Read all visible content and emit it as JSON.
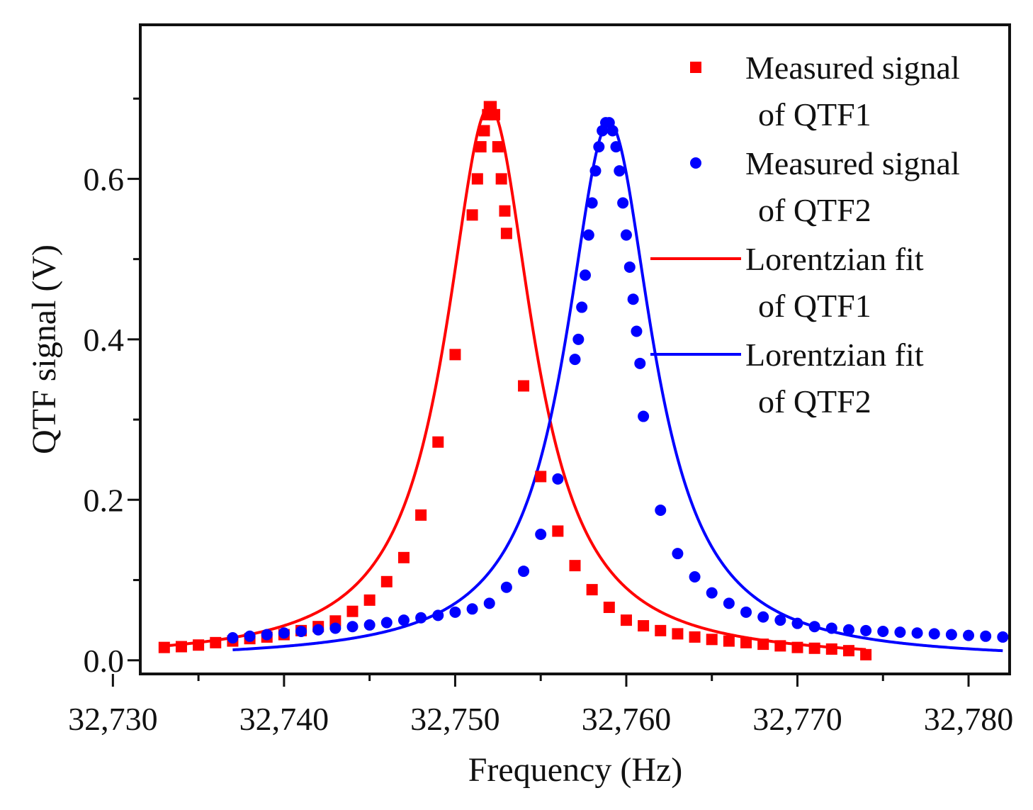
{
  "chart_data": {
    "type": "scatter",
    "xlabel": "Frequency (Hz)",
    "ylabel": "QTF signal (V)",
    "xlim": [
      32731.6,
      32782.4
    ],
    "ylim": [
      -0.017,
      0.792
    ],
    "xticks": [
      32730,
      32740,
      32750,
      32760,
      32770,
      32780
    ],
    "xtick_labels": [
      "32,730",
      "32,740",
      "32,750",
      "32,760",
      "32,770",
      "32,780"
    ],
    "yticks": [
      0.0,
      0.2,
      0.4,
      0.6
    ],
    "ytick_labels": [
      "0.0",
      "0.2",
      "0.4",
      "0.6"
    ],
    "y_minor_ticks": [
      0.1,
      0.3,
      0.5,
      0.7
    ],
    "x_minor_ticks": [
      32735,
      32745,
      32755,
      32765,
      32775
    ],
    "legend_position": "top-right",
    "series": [
      {
        "name": "QTF1 measured",
        "legend_lines": [
          "Measured signal",
          "of QTF1"
        ],
        "kind": "points",
        "marker": "square",
        "color": "#ff0000",
        "x": [
          32733,
          32734,
          32735,
          32736,
          32737,
          32738,
          32739,
          32740,
          32741,
          32742,
          32743,
          32744,
          32745,
          32746,
          32747,
          32748,
          32749,
          32750,
          32751,
          32751.3,
          32751.5,
          32751.7,
          32751.9,
          32752.0,
          32752.1,
          32752.3,
          32752.5,
          32752.7,
          32752.9,
          32753,
          32754,
          32755,
          32756,
          32757,
          32758,
          32759,
          32760,
          32761,
          32762,
          32763,
          32764,
          32765,
          32766,
          32767,
          32768,
          32769,
          32770,
          32771,
          32772,
          32773,
          32774
        ],
        "values": [
          0.016,
          0.017,
          0.019,
          0.022,
          0.024,
          0.027,
          0.029,
          0.032,
          0.037,
          0.042,
          0.049,
          0.061,
          0.075,
          0.098,
          0.128,
          0.181,
          0.272,
          0.381,
          0.555,
          0.6,
          0.64,
          0.66,
          0.68,
          0.69,
          0.69,
          0.68,
          0.64,
          0.6,
          0.56,
          0.532,
          0.342,
          0.229,
          0.161,
          0.118,
          0.088,
          0.066,
          0.05,
          0.043,
          0.037,
          0.033,
          0.029,
          0.026,
          0.024,
          0.022,
          0.02,
          0.018,
          0.016,
          0.015,
          0.014,
          0.012,
          0.007
        ]
      },
      {
        "name": "QTF2 measured",
        "legend_lines": [
          "Measured signal",
          "of QTF2"
        ],
        "kind": "points",
        "marker": "circle",
        "color": "#0000ff",
        "x": [
          32737,
          32738,
          32739,
          32740,
          32741,
          32742,
          32743,
          32744,
          32745,
          32746,
          32747,
          32748,
          32749,
          32750,
          32751,
          32752,
          32753,
          32754,
          32755,
          32756,
          32757,
          32757.2,
          32757.4,
          32757.6,
          32757.8,
          32758.0,
          32758.2,
          32758.4,
          32758.6,
          32758.8,
          32759.0,
          32759.2,
          32759.4,
          32759.6,
          32759.8,
          32760.0,
          32760.2,
          32760.4,
          32760.6,
          32760.8,
          32761,
          32762,
          32763,
          32764,
          32765,
          32766,
          32767,
          32768,
          32769,
          32770,
          32771,
          32772,
          32773,
          32774,
          32775,
          32776,
          32777,
          32778,
          32779,
          32780,
          32781,
          32782
        ],
        "values": [
          0.028,
          0.03,
          0.032,
          0.034,
          0.036,
          0.038,
          0.04,
          0.042,
          0.044,
          0.047,
          0.05,
          0.053,
          0.056,
          0.06,
          0.064,
          0.071,
          0.091,
          0.111,
          0.157,
          0.226,
          0.375,
          0.4,
          0.44,
          0.48,
          0.53,
          0.57,
          0.61,
          0.64,
          0.66,
          0.67,
          0.67,
          0.66,
          0.64,
          0.61,
          0.57,
          0.53,
          0.49,
          0.45,
          0.41,
          0.37,
          0.304,
          0.187,
          0.133,
          0.104,
          0.084,
          0.071,
          0.06,
          0.054,
          0.05,
          0.046,
          0.042,
          0.04,
          0.038,
          0.037,
          0.036,
          0.035,
          0.034,
          0.033,
          0.032,
          0.031,
          0.03,
          0.029
        ]
      },
      {
        "name": "QTF1 fit",
        "legend_lines": [
          "Lorentzian fit",
          "of QTF1"
        ],
        "kind": "lorentzian",
        "color": "#ff0000",
        "x_range": [
          32733,
          32774
        ],
        "f0": 32752,
        "gamma": 3.1,
        "amplitude": 0.69
      },
      {
        "name": "QTF2 fit",
        "legend_lines": [
          "Lorentzian fit",
          "of QTF2"
        ],
        "kind": "lorentzian",
        "color": "#0000ff",
        "x_range": [
          32737,
          32782
        ],
        "f0": 32759,
        "gamma": 3.1,
        "amplitude": 0.67
      }
    ]
  }
}
